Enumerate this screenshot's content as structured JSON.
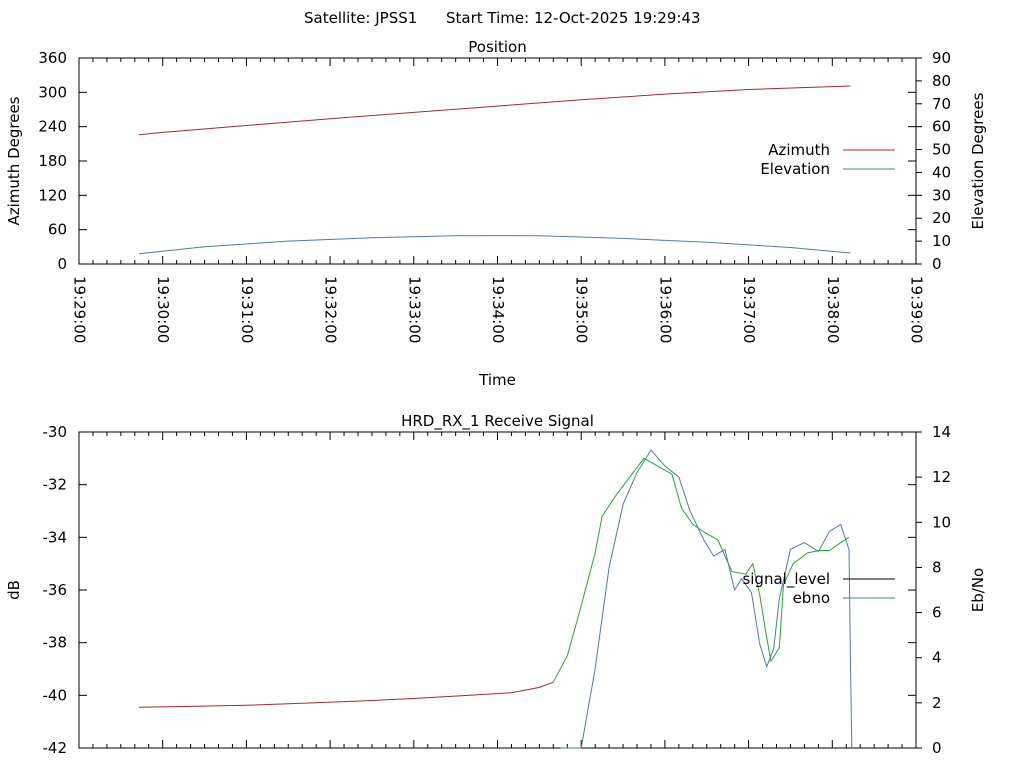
{
  "header": {
    "satellite": "Satellite: JPSS1",
    "start_time": "Start Time: 12-Oct-2025 19:29:43"
  },
  "chart_data": [
    {
      "type": "line",
      "title": "Position",
      "xlabel": "Time",
      "ylabel": "Azimuth Degrees",
      "y2label": "Elevation Degrees",
      "x_ticks": [
        "19:29:00",
        "19:30:00",
        "19:31:00",
        "19:32:00",
        "19:33:00",
        "19:34:00",
        "19:35:00",
        "19:36:00",
        "19:37:00",
        "19:38:00",
        "19:39:00"
      ],
      "xlim": [
        0,
        600
      ],
      "ylim": [
        0,
        360
      ],
      "y_ticks": [
        0,
        60,
        120,
        180,
        240,
        300,
        360
      ],
      "y2lim": [
        0,
        90
      ],
      "y2_ticks": [
        0,
        10,
        20,
        30,
        40,
        50,
        60,
        70,
        80,
        90
      ],
      "legend_position": "right",
      "series": [
        {
          "name": "Azimuth",
          "axis": "y",
          "color": "#a52a2a",
          "points": [
            [
              43,
              226
            ],
            [
              60,
              230
            ],
            [
              120,
              242
            ],
            [
              180,
              254
            ],
            [
              240,
              265
            ],
            [
              300,
              276
            ],
            [
              360,
              287
            ],
            [
              420,
              297
            ],
            [
              480,
              305
            ],
            [
              553,
              311
            ]
          ]
        },
        {
          "name": "Elevation",
          "axis": "y2",
          "color": "#4a7ab5",
          "points": [
            [
              43,
              4.5
            ],
            [
              90,
              7.5
            ],
            [
              150,
              10
            ],
            [
              210,
              11.5
            ],
            [
              270,
              12.3
            ],
            [
              300,
              12.4
            ],
            [
              330,
              12.3
            ],
            [
              390,
              11.2
            ],
            [
              450,
              9.5
            ],
            [
              510,
              7.2
            ],
            [
              553,
              4.8
            ]
          ]
        }
      ]
    },
    {
      "type": "line",
      "title": "HRD_RX_1 Receive Signal",
      "xlabel": "",
      "ylabel": "dB",
      "y2label": "Eb/No",
      "xlim": [
        0,
        600
      ],
      "ylim": [
        -42,
        -30
      ],
      "y_ticks": [
        -42,
        -40,
        -38,
        -36,
        -34,
        -32,
        -30
      ],
      "y2lim": [
        0,
        14
      ],
      "y2_ticks": [
        0,
        2,
        4,
        6,
        8,
        10,
        12,
        14
      ],
      "legend_position": "right",
      "series": [
        {
          "name": "signal_level",
          "axis": "y",
          "color": "#000000",
          "segments": [
            {
              "color": "#a52a2a",
              "points": [
                [
                  43,
                  -40.45
                ],
                [
                  80,
                  -40.42
                ],
                [
                  120,
                  -40.38
                ],
                [
                  160,
                  -40.3
                ],
                [
                  200,
                  -40.22
                ],
                [
                  240,
                  -40.12
                ],
                [
                  280,
                  -40.0
                ],
                [
                  310,
                  -39.9
                ],
                [
                  330,
                  -39.7
                ],
                [
                  340,
                  -39.5
                ]
              ]
            },
            {
              "color": "#22aa22",
              "points": [
                [
                  340,
                  -39.5
                ],
                [
                  350,
                  -38.5
                ],
                [
                  360,
                  -36.6
                ],
                [
                  370,
                  -34.6
                ],
                [
                  375,
                  -33.2
                ],
                [
                  385,
                  -32.4
                ],
                [
                  395,
                  -31.7
                ],
                [
                  405,
                  -31.0
                ],
                [
                  415,
                  -31.3
                ],
                [
                  425,
                  -31.6
                ],
                [
                  432,
                  -32.9
                ],
                [
                  440,
                  -33.5
                ],
                [
                  448,
                  -33.8
                ],
                [
                  458,
                  -34.1
                ],
                [
                  468,
                  -35.3
                ],
                [
                  478,
                  -35.4
                ],
                [
                  483,
                  -35.0
                ],
                [
                  488,
                  -36.2
                ],
                [
                  492,
                  -37.5
                ],
                [
                  496,
                  -38.7
                ],
                [
                  502,
                  -38.2
                ],
                [
                  505,
                  -35.8
                ],
                [
                  512,
                  -35.0
                ],
                [
                  522,
                  -34.6
                ],
                [
                  530,
                  -34.5
                ],
                [
                  538,
                  -34.5
                ],
                [
                  546,
                  -34.2
                ],
                [
                  552,
                  -34.0
                ]
              ]
            }
          ]
        },
        {
          "name": "ebno",
          "axis": "y2",
          "color": "#4a7ab5",
          "points": [
            [
              345,
              0
            ],
            [
              360,
              0
            ],
            [
              370,
              3.5
            ],
            [
              380,
              8.0
            ],
            [
              390,
              10.8
            ],
            [
              400,
              12.2
            ],
            [
              410,
              13.2
            ],
            [
              420,
              12.5
            ],
            [
              430,
              12.0
            ],
            [
              438,
              10.5
            ],
            [
              448,
              9.2
            ],
            [
              455,
              8.5
            ],
            [
              463,
              8.8
            ],
            [
              470,
              7.0
            ],
            [
              475,
              7.5
            ],
            [
              482,
              6.9
            ],
            [
              488,
              4.6
            ],
            [
              493,
              3.6
            ],
            [
              498,
              4.4
            ],
            [
              502,
              6.6
            ],
            [
              510,
              8.8
            ],
            [
              520,
              9.1
            ],
            [
              530,
              8.7
            ],
            [
              538,
              9.6
            ],
            [
              546,
              9.9
            ],
            [
              552,
              8.8
            ],
            [
              553,
              4.0
            ],
            [
              554,
              0
            ]
          ]
        }
      ]
    }
  ]
}
